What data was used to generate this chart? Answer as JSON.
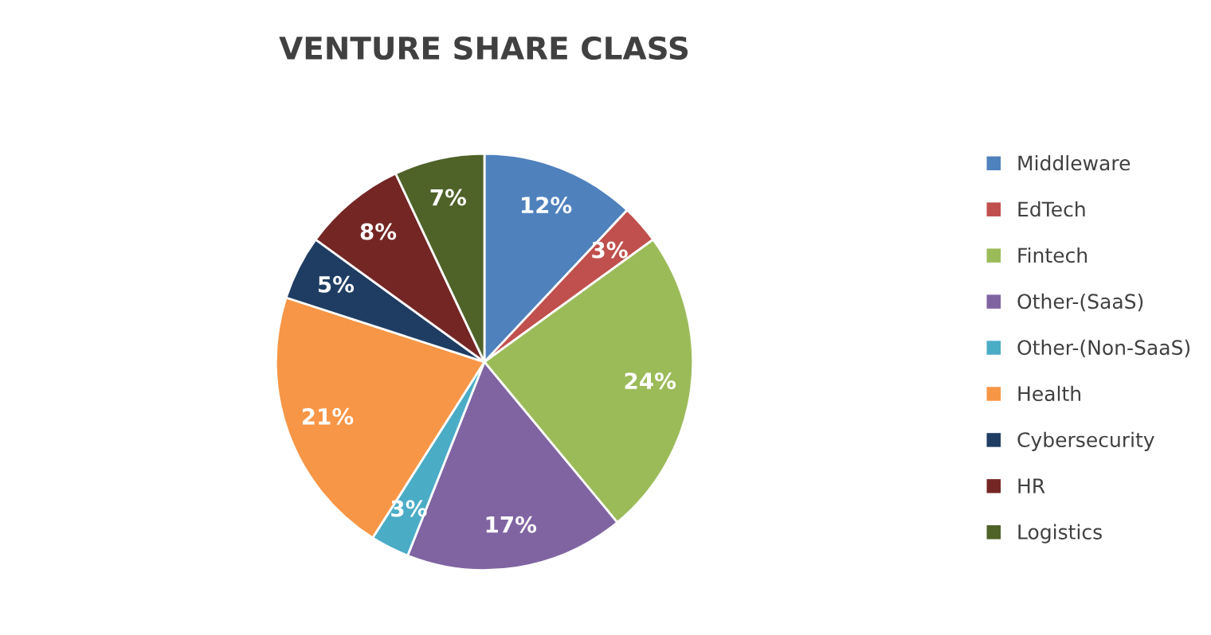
{
  "chart_data": {
    "type": "pie",
    "title": "VENTURE SHARE CLASS",
    "categories": [
      "Middleware",
      "EdTech",
      "Fintech",
      "Other-(SaaS)",
      "Other-(Non-SaaS)",
      "Health",
      "Cybersecurity",
      "HR",
      "Logistics"
    ],
    "values": [
      12,
      3,
      24,
      17,
      3,
      21,
      5,
      8,
      7
    ],
    "value_labels": [
      "12%",
      "3%",
      "24%",
      "17%",
      "3%",
      "21%",
      "5%",
      "8%",
      "7%"
    ],
    "colors": [
      "#4f81bd",
      "#c0504d",
      "#9bbb59",
      "#8064a2",
      "#4bacc6",
      "#f79646",
      "#1f3d63",
      "#742625",
      "#4f6228"
    ],
    "legend": "right"
  }
}
